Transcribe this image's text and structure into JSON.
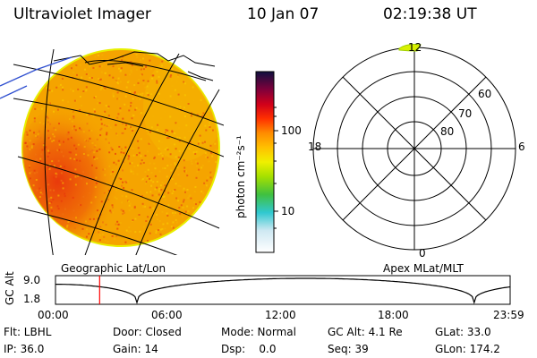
{
  "header": {
    "instrument": "Ultraviolet Imager",
    "date": "10 Jan 07",
    "time": "02:19:38 UT"
  },
  "colorbar": {
    "unit_label": "photon cm⁻²s⁻¹",
    "ticks": [
      "100",
      "10"
    ]
  },
  "polar_plot": {
    "mlt_labels": {
      "top": "12",
      "left": "18",
      "right": "6",
      "bottom": "0"
    },
    "lat_labels": [
      "60",
      "70",
      "80"
    ]
  },
  "panel_labels": {
    "left": "Geographic Lat/Lon",
    "right": "Apex MLat/MLT"
  },
  "altitude_plot": {
    "axis_label": "GC Alt",
    "y_ticks": [
      "9.0",
      "1.8"
    ],
    "x_ticks": [
      "00:00",
      "06:00",
      "12:00",
      "18:00",
      "23:59"
    ],
    "current_time_hours": 2.33
  },
  "info": {
    "filter": "Flt: LBHL",
    "door": "Door: Closed",
    "mode": "Mode: Normal",
    "gc_alt": "GC Alt: 4.1 Re",
    "glat": "GLat: 33.0",
    "ip": "IP: 36.0",
    "gain": "Gain: 14",
    "dsp": "Dsp:    0.0",
    "seq": "Seq: 39",
    "glon": "GLon: 174.2"
  },
  "colors": {
    "disk_base": "#f5a400",
    "disk_bright": "#e83a0c",
    "disk_rim": "#f5e000",
    "marker": "#ff0000"
  }
}
